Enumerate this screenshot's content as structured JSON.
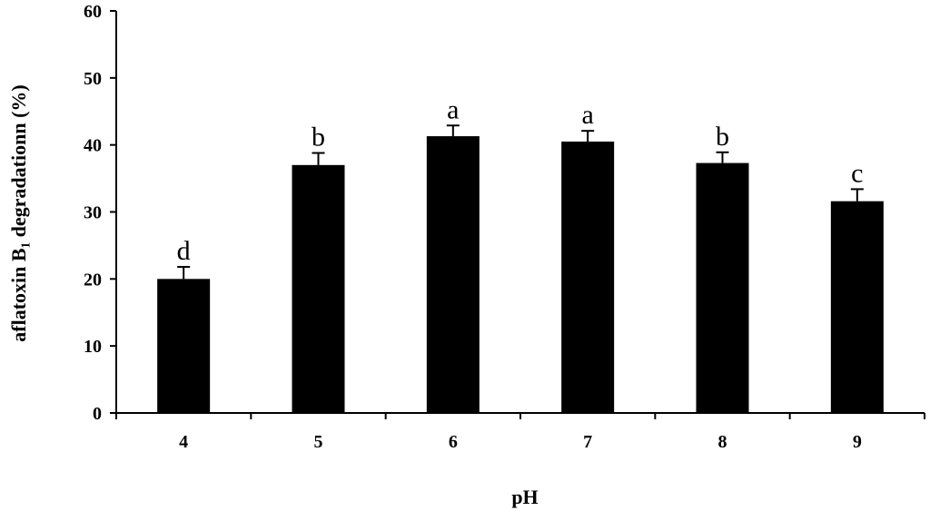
{
  "chart_data": {
    "type": "bar",
    "categories": [
      "4",
      "5",
      "6",
      "7",
      "8",
      "9"
    ],
    "values": [
      20.0,
      37.0,
      41.3,
      40.5,
      37.3,
      31.6
    ],
    "errors": [
      1.8,
      1.8,
      1.6,
      1.6,
      1.6,
      1.8
    ],
    "significance_labels": [
      "d",
      "b",
      "a",
      "a",
      "b",
      "c"
    ],
    "xlabel": "pH",
    "ylabel": "aflatoxin B₁ degradationn  (%)",
    "ylim": [
      0,
      60
    ],
    "yticks": [
      "0",
      "10",
      "20",
      "30",
      "40",
      "50",
      "60"
    ],
    "bar_color": "#000000",
    "grid": false,
    "legend": "none"
  }
}
